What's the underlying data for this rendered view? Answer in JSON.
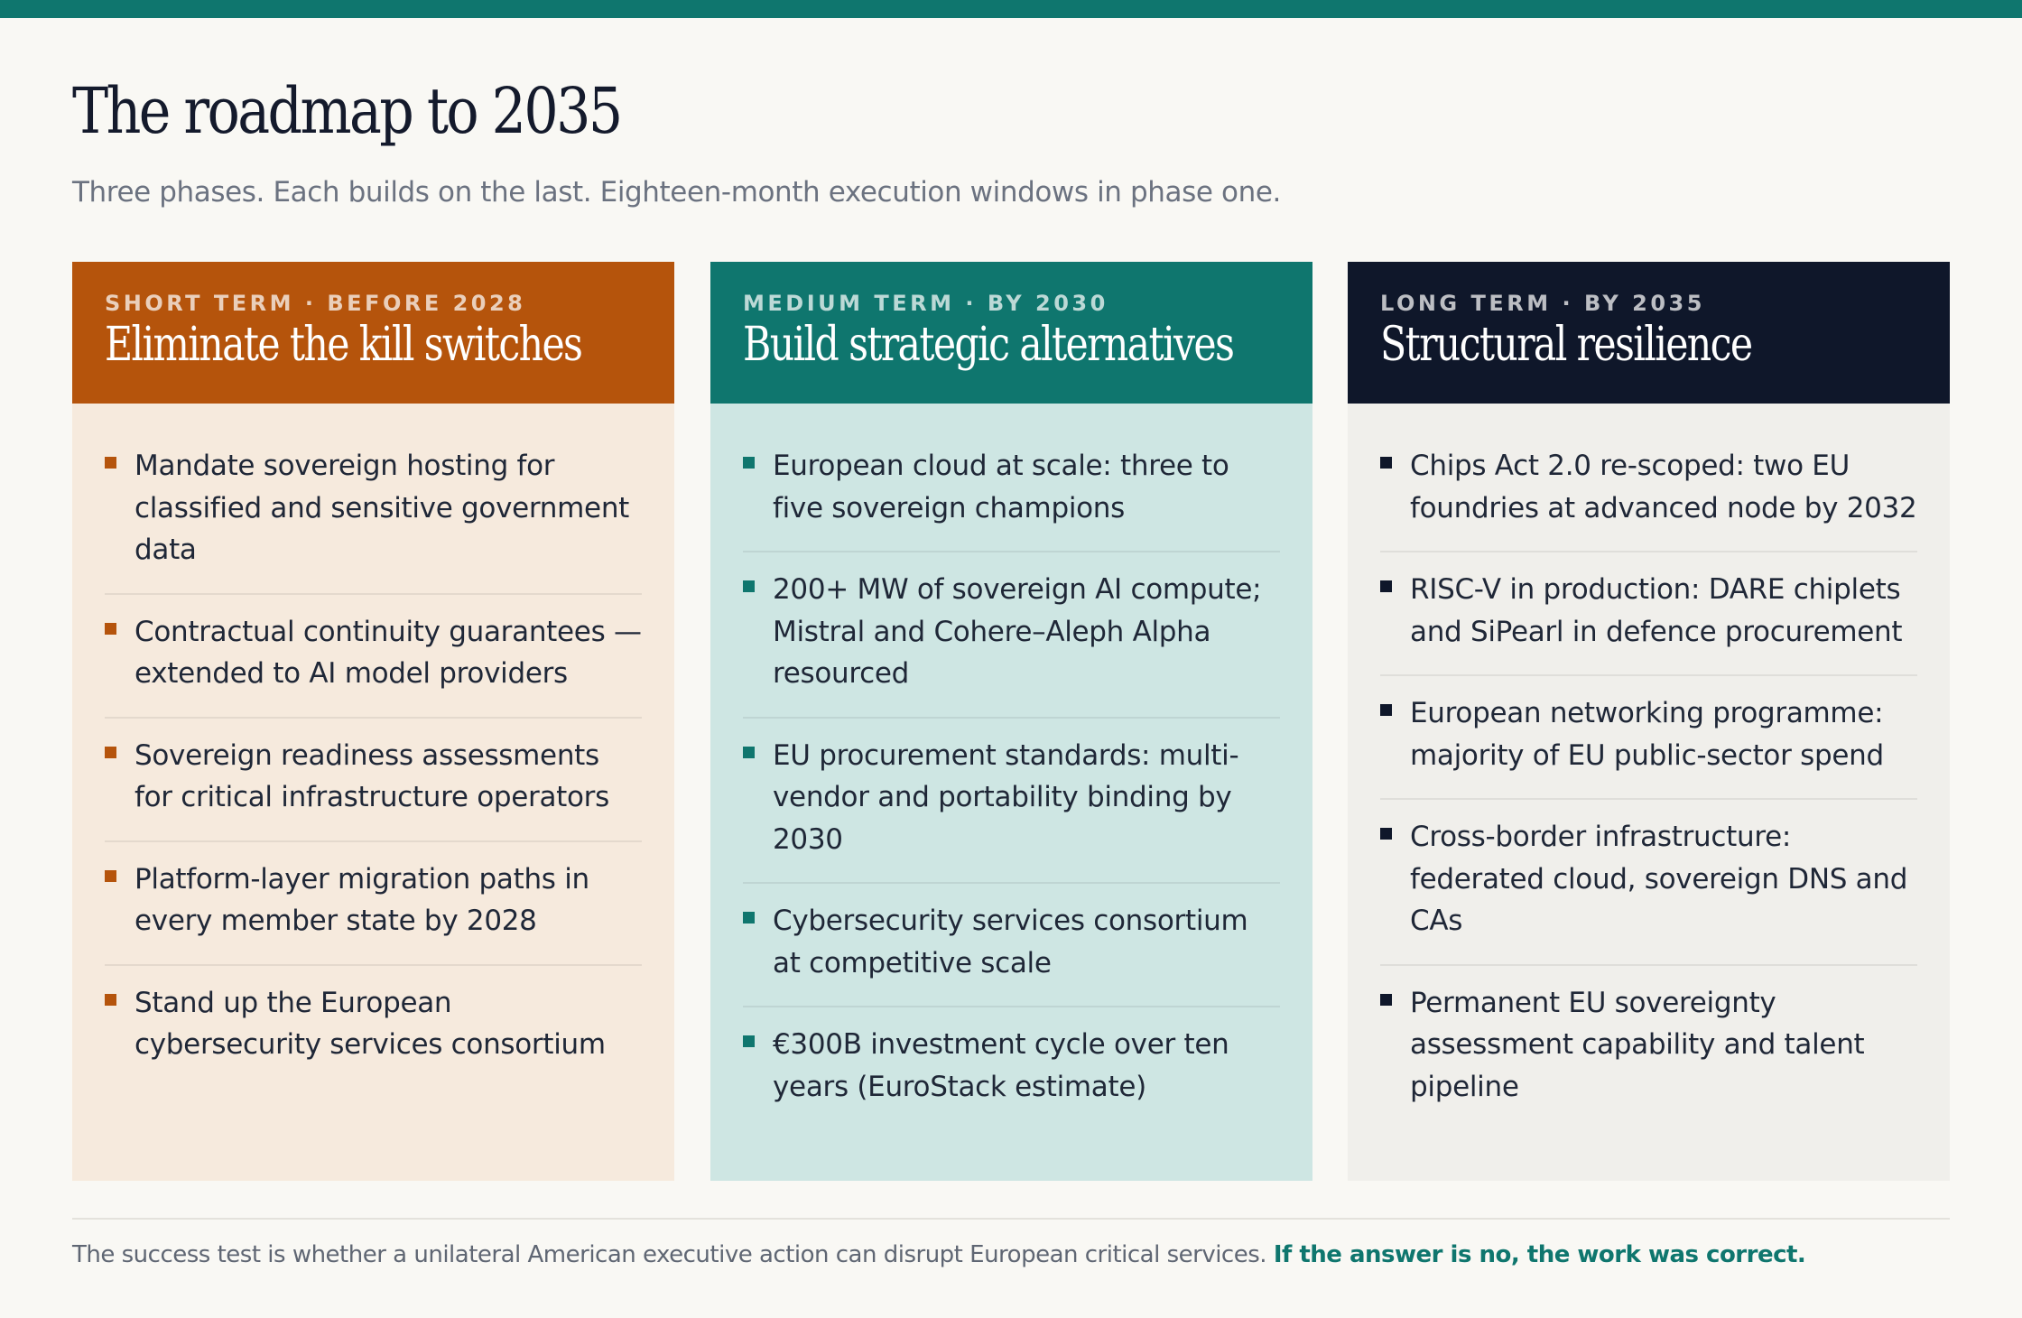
{
  "header": {
    "title": "The roadmap to 2035",
    "subtitle": "Three phases. Each builds on the last. Eighteen-month execution windows in phase one."
  },
  "colors": {
    "short_term": "#b5540c",
    "medium_term": "#0f766e",
    "long_term": "#0f172a"
  },
  "phases": [
    {
      "eyebrow": "SHORT TERM · BEFORE 2028",
      "title": "Eliminate the kill switches",
      "items": [
        "Mandate sovereign hosting for classified and sensitive government data",
        "Contractual continuity guarantees — extended to AI model providers",
        "Sovereign readiness assessments for critical infrastructure operators",
        "Platform-layer migration paths in every member state by 2028",
        "Stand up the European cybersecurity services consortium"
      ]
    },
    {
      "eyebrow": "MEDIUM TERM · BY 2030",
      "title": "Build strategic alternatives",
      "items": [
        "European cloud at scale: three to five sovereign champions",
        "200+ MW of sovereign AI compute; Mistral and Cohere–Aleph Alpha resourced",
        "EU procurement standards: multi-vendor and portability binding by 2030",
        "Cybersecurity services consortium at competitive scale",
        "€300B investment cycle over ten years (EuroStack estimate)"
      ]
    },
    {
      "eyebrow": "LONG TERM · BY 2035",
      "title": "Structural resilience",
      "items": [
        "Chips Act 2.0 re-scoped: two EU foundries at advanced node by 2032",
        "RISC-V in production: DARE chiplets and SiPearl in defence procurement",
        "European networking programme: majority of EU public-sector spend",
        "Cross-border infrastructure: federated cloud, sovereign DNS and CAs",
        "Permanent EU sovereignty assessment capability and talent pipeline"
      ]
    }
  ],
  "footer": {
    "text": "The success test is whether a unilateral American executive action can disrupt European critical services.",
    "emphasis": "If the answer is no, the work was correct."
  }
}
